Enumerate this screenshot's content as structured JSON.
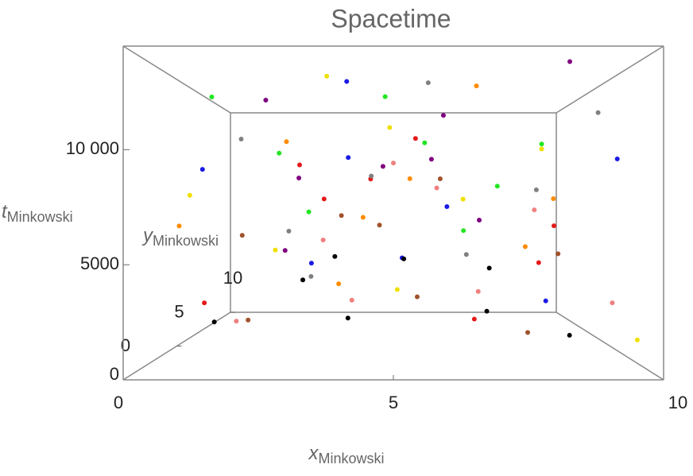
{
  "chart_data": {
    "type": "scatter3d",
    "title": "Spacetime",
    "x_label": "x",
    "x_label_sub": "Minkowski",
    "y_label": "y",
    "y_label_sub": "Minkowski",
    "z_label": "t",
    "z_label_sub": "Minkowski",
    "xlim": [
      0,
      10
    ],
    "xticks": [
      0,
      5,
      10
    ],
    "ylim": [
      0,
      10
    ],
    "yticks": [
      0,
      5,
      10
    ],
    "zlim": [
      0,
      14500
    ],
    "zticks": [
      0,
      {
        "value": 5000,
        "label": "5000"
      },
      {
        "value": 10000,
        "label": "10 000"
      }
    ],
    "series": [
      {
        "color": "#e41a1a",
        "x": [
          1.2,
          3.4,
          5.6,
          7.8,
          2.3,
          6.7,
          8.9,
          4.5
        ],
        "y": [
          2,
          5,
          8,
          1,
          9,
          3,
          6,
          4
        ],
        "z": [
          3000,
          8000,
          12000,
          5000,
          10500,
          2000,
          6500,
          9000
        ]
      },
      {
        "color": "#1a1ae6",
        "x": [
          0.8,
          2.9,
          4.1,
          6.3,
          8.2,
          9.5,
          3.7,
          5.2
        ],
        "y": [
          4,
          7,
          1,
          6,
          3,
          2,
          9,
          5
        ],
        "z": [
          9500,
          4200,
          13200,
          7600,
          2900,
          9800,
          11000,
          4800
        ]
      },
      {
        "color": "#22e622",
        "x": [
          1.5,
          2.6,
          4.8,
          6.9,
          7.4,
          8.8,
          3.3,
          5.9
        ],
        "y": [
          1,
          3,
          6,
          8,
          5,
          7,
          2,
          9
        ],
        "z": [
          12500,
          10200,
          13900,
          6100,
          8700,
          11400,
          7300,
          12000
        ]
      },
      {
        "color": "#ff8c00",
        "x": [
          0.5,
          2.1,
          3.9,
          5.4,
          6.6,
          7.9,
          9.1,
          4.3
        ],
        "y": [
          3,
          8,
          2,
          6,
          1,
          4,
          7,
          5
        ],
        "z": [
          6600,
          11800,
          3900,
          9200,
          13000,
          5500,
          8100,
          7000
        ]
      },
      {
        "color": "#800080",
        "x": [
          1.9,
          3.1,
          4.7,
          6.1,
          7.2,
          8.4,
          2.5,
          5.8
        ],
        "y": [
          6,
          2,
          9,
          4,
          7,
          1,
          5,
          3
        ],
        "z": [
          13700,
          8900,
          10400,
          12300,
          6800,
          14100,
          5200,
          9900
        ]
      },
      {
        "color": "#f0e000",
        "x": [
          0.3,
          1.6,
          3.6,
          5.1,
          6.4,
          8.6,
          9.7,
          4.9
        ],
        "y": [
          5,
          9,
          3,
          7,
          2,
          6,
          1,
          8
        ],
        "z": [
          8200,
          4700,
          14000,
          2600,
          7900,
          10900,
          1500,
          12700
        ]
      },
      {
        "color": "#808080",
        "x": [
          1.1,
          2.7,
          4.4,
          5.7,
          7.1,
          8.3,
          9.3,
          3.0
        ],
        "y": [
          7,
          4,
          8,
          2,
          9,
          5,
          3,
          6
        ],
        "z": [
          11700,
          6300,
          9600,
          13400,
          4400,
          8500,
          12200,
          3600
        ]
      },
      {
        "color": "#000000",
        "x": [
          1.4,
          2.8,
          4.0,
          5.3,
          6.8,
          7.6,
          8.7,
          3.5
        ],
        "y": [
          2,
          6,
          4,
          9,
          1,
          8,
          3,
          7
        ],
        "z": [
          2100,
          3400,
          1800,
          4100,
          2800,
          3700,
          1200,
          4600
        ]
      },
      {
        "color": "#a0522d",
        "x": [
          0.9,
          2.2,
          3.8,
          5.5,
          6.2,
          7.7,
          9.0,
          4.6
        ],
        "y": [
          8,
          1,
          5,
          3,
          7,
          2,
          6,
          9
        ],
        "z": [
          5800,
          2400,
          7100,
          3100,
          9300,
          1600,
          4900,
          6400
        ]
      },
      {
        "color": "#f08080",
        "x": [
          1.7,
          3.2,
          4.2,
          6.0,
          7.3,
          8.1,
          9.4,
          5.0
        ],
        "y": [
          3,
          7,
          1,
          5,
          8,
          4,
          2,
          6
        ],
        "z": [
          1900,
          5600,
          3300,
          8600,
          2200,
          7400,
          3000,
          10100
        ]
      }
    ]
  }
}
